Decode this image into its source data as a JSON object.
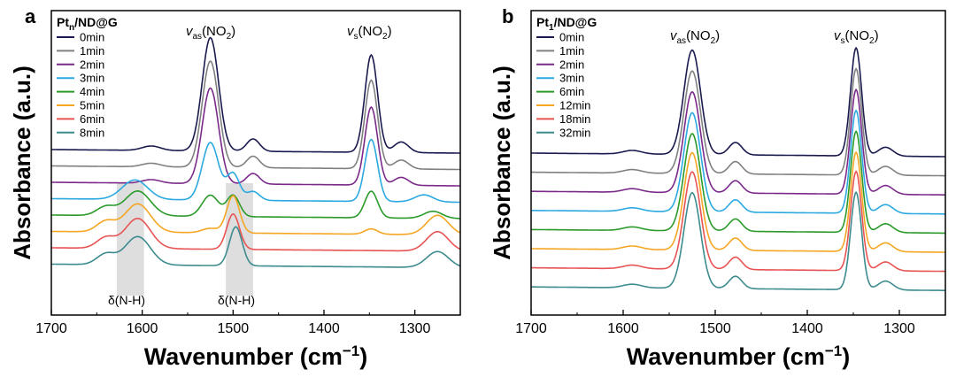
{
  "chart_data": [
    {
      "type": "line",
      "panel": "a",
      "legend_title": "Pt",
      "legend_title_sub": "n",
      "legend_title_rest": "/ND@G",
      "xlabel": "Wavenumber (cm",
      "xlabel_sup": "−1",
      "xlabel_close": ")",
      "ylabel": "Absorbance (a.u.)",
      "xlim": [
        1700,
        1250
      ],
      "xticks": [
        "1700",
        "1600",
        "1500",
        "1400",
        "1300"
      ],
      "legend_position": "top-left",
      "annotations": {
        "vas": "v",
        "vas_sub": "as",
        "vas_rest": "(NO",
        "vas_sub2": "2",
        "vas_close": ")",
        "vs": "v",
        "vs_sub": "s",
        "vs_rest": "(NO",
        "vs_sub2": "2",
        "vs_close": ")",
        "nh1": "δ(N-H)",
        "nh2": "δ(N-H)"
      },
      "shaded_regions": [
        [
          1628,
          1598
        ],
        [
          1508,
          1478
        ]
      ],
      "series": [
        {
          "name": "0min",
          "color": "#1a1a4e",
          "nh": 0.0,
          "no2": 1.0,
          "peaks": [
            [
              1525,
              128,
              9
            ],
            [
              1348,
              110,
              7
            ],
            [
              1478,
              14,
              7
            ],
            [
              1315,
              12,
              8
            ],
            [
              1590,
              5,
              10
            ]
          ]
        },
        {
          "name": "1min",
          "color": "#808080",
          "nh": 0.0,
          "no2": 1.0,
          "peaks": [
            [
              1525,
              120,
              9
            ],
            [
              1348,
              100,
              7
            ],
            [
              1478,
              13,
              7
            ],
            [
              1315,
              10,
              8
            ],
            [
              1590,
              4,
              10
            ]
          ]
        },
        {
          "name": "2min",
          "color": "#7b2a8a",
          "nh": 0.0,
          "no2": 1.0,
          "peaks": [
            [
              1525,
              108,
              9
            ],
            [
              1348,
              88,
              7
            ],
            [
              1478,
              12,
              7
            ],
            [
              1315,
              9,
              8
            ],
            [
              1590,
              4,
              10
            ]
          ]
        },
        {
          "name": "3min",
          "color": "#2ba9e0",
          "nh": 0.0,
          "no2": 1.0,
          "peaks": [
            [
              1525,
              65,
              9
            ],
            [
              1348,
              70,
              7
            ],
            [
              1608,
              22,
              14
            ],
            [
              1500,
              30,
              7
            ],
            [
              1478,
              10,
              7
            ],
            [
              1290,
              8,
              10
            ]
          ]
        },
        {
          "name": "4min",
          "color": "#2a9a2a",
          "nh": 0.0,
          "no2": 1.0,
          "peaks": [
            [
              1525,
              24,
              9
            ],
            [
              1348,
              30,
              7
            ],
            [
              1605,
              28,
              14
            ],
            [
              1500,
              24,
              7
            ],
            [
              1640,
              10,
              10
            ],
            [
              1280,
              8,
              10
            ]
          ]
        },
        {
          "name": "5min",
          "color": "#f5a623",
          "nh": 0.0,
          "no2": 1.0,
          "peaks": [
            [
              1525,
              5,
              9
            ],
            [
              1348,
              6,
              7
            ],
            [
              1605,
              32,
              14
            ],
            [
              1500,
              42,
              7
            ],
            [
              1640,
              12,
              10
            ],
            [
              1275,
              22,
              12
            ]
          ]
        },
        {
          "name": "6min",
          "color": "#e85454",
          "nh": 0.0,
          "no2": 1.0,
          "peaks": [
            [
              1605,
              34,
              14
            ],
            [
              1500,
              40,
              7
            ],
            [
              1640,
              12,
              10
            ],
            [
              1275,
              22,
              12
            ]
          ]
        },
        {
          "name": "8min",
          "color": "#3d8b8e",
          "nh": 0.0,
          "no2": 1.0,
          "peaks": [
            [
              1605,
              32,
              14
            ],
            [
              1497,
              44,
              7
            ],
            [
              1640,
              12,
              10
            ],
            [
              1275,
              18,
              12
            ]
          ]
        }
      ]
    },
    {
      "type": "line",
      "panel": "b",
      "legend_title": "Pt",
      "legend_title_sub": "1",
      "legend_title_rest": "/ND@G",
      "xlabel": "Wavenumber (cm",
      "xlabel_sup": "−1",
      "xlabel_close": ")",
      "ylabel": "Absorbance (a.u.)",
      "xlim": [
        1700,
        1250
      ],
      "xticks": [
        "1700",
        "1600",
        "1500",
        "1400",
        "1300"
      ],
      "legend_position": "top-left",
      "annotations": {
        "vas": "v",
        "vas_sub": "as",
        "vas_rest": "(NO",
        "vas_sub2": "2",
        "vas_close": ")",
        "vs": "v",
        "vs_sub": "s",
        "vs_rest": "(NO",
        "vs_sub2": "2",
        "vs_close": ")"
      },
      "series": [
        {
          "name": "0min",
          "color": "#1a1a4e",
          "peaks": [
            [
              1525,
              118,
              9
            ],
            [
              1347,
              122,
              6
            ],
            [
              1478,
              14,
              7
            ],
            [
              1315,
              10,
              8
            ],
            [
              1590,
              4,
              10
            ]
          ]
        },
        {
          "name": "1min",
          "color": "#808080",
          "peaks": [
            [
              1525,
              116,
              9
            ],
            [
              1347,
              120,
              6
            ],
            [
              1478,
              14,
              7
            ],
            [
              1315,
              10,
              8
            ],
            [
              1590,
              4,
              10
            ]
          ]
        },
        {
          "name": "2min",
          "color": "#7b2a8a",
          "peaks": [
            [
              1525,
              114,
              9
            ],
            [
              1347,
              118,
              6
            ],
            [
              1478,
              14,
              7
            ],
            [
              1315,
              10,
              8
            ],
            [
              1590,
              4,
              10
            ]
          ]
        },
        {
          "name": "3min",
          "color": "#2ba9e0",
          "peaks": [
            [
              1525,
              112,
              9
            ],
            [
              1347,
              116,
              6
            ],
            [
              1478,
              14,
              7
            ],
            [
              1315,
              10,
              8
            ],
            [
              1590,
              4,
              10
            ]
          ]
        },
        {
          "name": "6min",
          "color": "#2a9a2a",
          "peaks": [
            [
              1525,
              110,
              9
            ],
            [
              1347,
              114,
              6
            ],
            [
              1478,
              14,
              7
            ],
            [
              1315,
              10,
              8
            ],
            [
              1590,
              4,
              10
            ]
          ]
        },
        {
          "name": "12min",
          "color": "#f5a623",
          "peaks": [
            [
              1525,
              110,
              9
            ],
            [
              1347,
              112,
              6
            ],
            [
              1478,
              14,
              7
            ],
            [
              1315,
              10,
              8
            ],
            [
              1590,
              4,
              10
            ]
          ]
        },
        {
          "name": "18min",
          "color": "#e85454",
          "peaks": [
            [
              1525,
              110,
              9
            ],
            [
              1347,
              112,
              6
            ],
            [
              1478,
              14,
              7
            ],
            [
              1315,
              10,
              8
            ],
            [
              1590,
              4,
              10
            ]
          ]
        },
        {
          "name": "32min",
          "color": "#3d8b8e",
          "peaks": [
            [
              1525,
              108,
              9
            ],
            [
              1347,
              110,
              6
            ],
            [
              1478,
              14,
              7
            ],
            [
              1315,
              10,
              8
            ],
            [
              1590,
              4,
              10
            ]
          ]
        }
      ]
    }
  ]
}
